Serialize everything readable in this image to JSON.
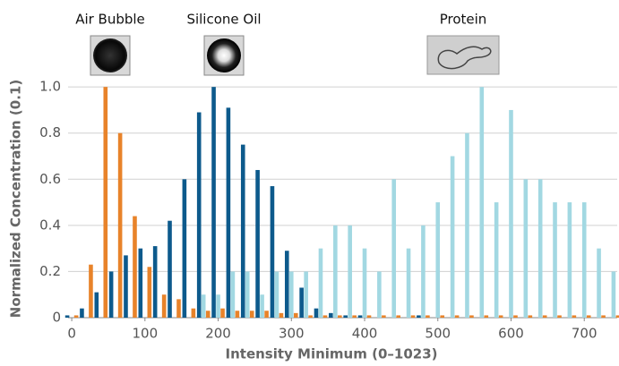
{
  "chart_data": {
    "type": "bar",
    "xlabel": "Intensity Minimum (0–1023)",
    "ylabel": "Normalized Concentration (0.1)",
    "x": [
      0,
      20,
      40,
      60,
      80,
      100,
      120,
      140,
      160,
      180,
      200,
      220,
      240,
      260,
      280,
      300,
      320,
      340,
      360,
      380,
      400,
      420,
      440,
      460,
      480,
      500,
      520,
      540,
      560,
      580,
      600,
      620,
      640,
      660,
      680,
      700,
      720,
      740
    ],
    "series": [
      {
        "name": "Silicone Oil",
        "color": "#0d5a8c",
        "values": [
          0.01,
          0.04,
          0.11,
          0.2,
          0.27,
          0.3,
          0.31,
          0.42,
          0.6,
          0.89,
          1.0,
          0.91,
          0.75,
          0.64,
          0.57,
          0.29,
          0.13,
          0.04,
          0.02,
          0.01,
          0.01,
          0,
          0,
          0,
          0.01,
          0,
          0,
          0,
          0,
          0,
          0,
          0,
          0,
          0,
          0,
          0,
          0,
          0
        ]
      },
      {
        "name": "Protein",
        "color": "#a2d8e2",
        "values": [
          0,
          0,
          0,
          0,
          0,
          0,
          0,
          0,
          0,
          0.1,
          0.1,
          0.2,
          0.2,
          0.1,
          0.2,
          0.2,
          0.2,
          0.3,
          0.4,
          0.4,
          0.3,
          0.2,
          0.6,
          0.3,
          0.4,
          0.5,
          0.7,
          0.8,
          1.0,
          0.5,
          0.9,
          0.6,
          0.6,
          0.5,
          0.5,
          0.5,
          0.3,
          0.2
        ]
      },
      {
        "name": "Air Bubble",
        "color": "#e8832a",
        "values": [
          0.01,
          0.23,
          1.0,
          0.8,
          0.44,
          0.22,
          0.1,
          0.08,
          0.04,
          0.03,
          0.04,
          0.03,
          0.03,
          0.03,
          0.02,
          0.02,
          0.01,
          0.01,
          0.01,
          0.01,
          0.01,
          0.01,
          0.01,
          0.01,
          0.01,
          0.01,
          0.01,
          0.01,
          0.01,
          0.01,
          0.01,
          0.01,
          0.01,
          0.01,
          0.01,
          0.01,
          0.01,
          0.01
        ]
      }
    ],
    "xlim": [
      -5,
      745
    ],
    "xticks": [
      0,
      100,
      200,
      300,
      400,
      500,
      600,
      700
    ],
    "ylim": [
      0,
      1.02
    ],
    "yticks": [
      0,
      0.2,
      0.4,
      0.6,
      0.8,
      {
        "value": 1.0,
        "label": "1.0"
      }
    ],
    "grid": true
  }
}
